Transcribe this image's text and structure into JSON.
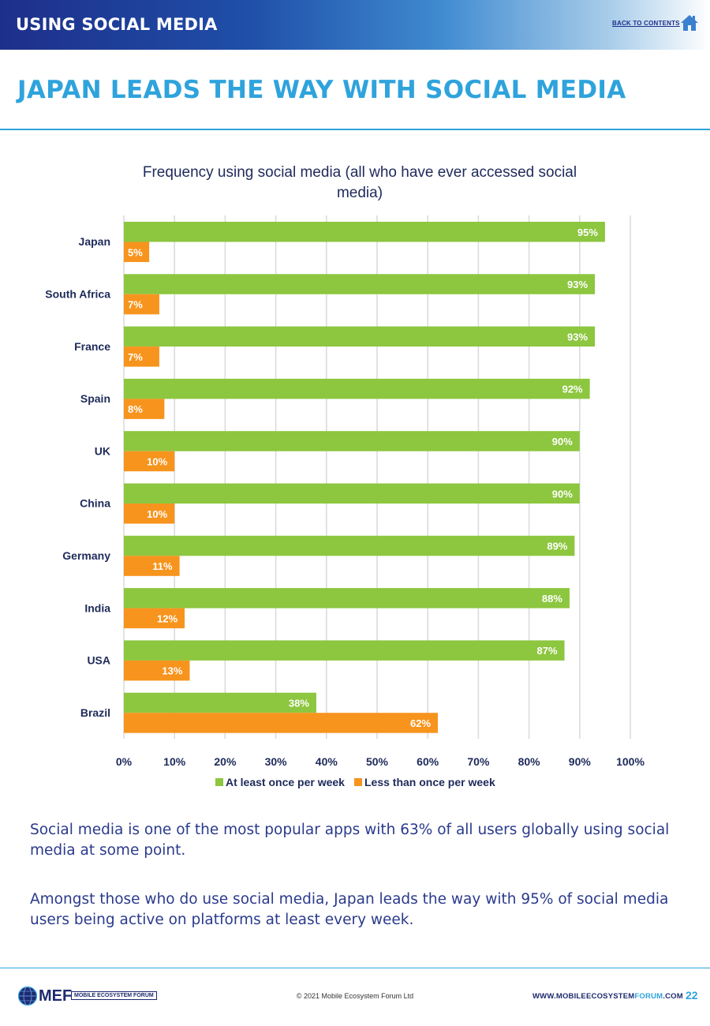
{
  "header": {
    "section_title": "USING SOCIAL MEDIA",
    "back_link": "BACK TO CONTENTS",
    "home_icon": "home-icon"
  },
  "headline": "JAPAN LEADS THE WAY WITH SOCIAL MEDIA",
  "colors": {
    "green": "#8dc63f",
    "orange": "#f7941d",
    "accent": "#2ea3dc",
    "navy": "#1e2a6e"
  },
  "chart_data": {
    "type": "bar",
    "orientation": "horizontal",
    "title_line1": "Frequency using social media (all who have ever accessed social",
    "title_line2": "media)",
    "categories": [
      "Japan",
      "South Africa",
      "France",
      "Spain",
      "UK",
      "China",
      "Germany",
      "India",
      "USA",
      "Brazil"
    ],
    "series": [
      {
        "name": "At least once per week",
        "color": "#8dc63f",
        "values": [
          95,
          93,
          93,
          92,
          90,
          90,
          89,
          88,
          87,
          38
        ]
      },
      {
        "name": "Less than once per week",
        "color": "#f7941d",
        "values": [
          5,
          7,
          7,
          8,
          10,
          10,
          11,
          12,
          13,
          62
        ]
      }
    ],
    "xlim": [
      0,
      100
    ],
    "xticks": [
      "0%",
      "10%",
      "20%",
      "30%",
      "40%",
      "50%",
      "60%",
      "70%",
      "80%",
      "90%",
      "100%"
    ],
    "value_suffix": "%",
    "grid": true,
    "legend_position": "bottom"
  },
  "body": {
    "paragraph1": "Social media is one of the most popular apps with 63% of all users globally using social media at some point.",
    "paragraph2": "Amongst those who do use social media, Japan leads the way with 95% of social media users being active on platforms at least every week."
  },
  "footer": {
    "logo_text": "MEF",
    "logo_subtext": "MOBILE ECOSYSTEM FORUM",
    "copyright": "© 2021 Mobile Ecosystem Forum Ltd",
    "website_pre": "WWW.",
    "website_mid": "MOBILEECOSYSTEM",
    "website_hl": "FORUM",
    "website_post": ".COM",
    "page_number": "22"
  }
}
